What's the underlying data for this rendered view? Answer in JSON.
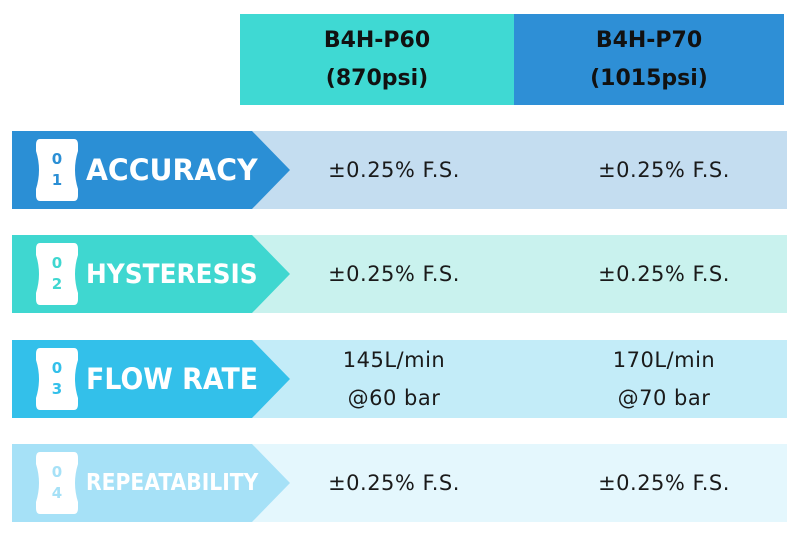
{
  "columns": [
    {
      "model": "B4H-P60",
      "pressure": "(870psi)"
    },
    {
      "model": "B4H-P70",
      "pressure": "(1015psi)"
    }
  ],
  "rows": [
    {
      "num_top": "0",
      "num_bottom": "1",
      "label": "ACCURACY",
      "value_1_line1": "±0.25% F.S.",
      "value_1_line2": "",
      "value_2_line1": "±0.25% F.S.",
      "value_2_line2": "",
      "colors": {
        "label": "#2b8fd5",
        "row": "#c4ddf0",
        "badge_text": "#2b8fd5"
      }
    },
    {
      "num_top": "0",
      "num_bottom": "2",
      "label": "HYSTERESIS",
      "value_1_line1": "±0.25% F.S.",
      "value_1_line2": "",
      "value_2_line1": "±0.25% F.S.",
      "value_2_line2": "",
      "colors": {
        "label": "#3fd7d0",
        "row": "#c9f2ee",
        "badge_text": "#3fd7d0"
      }
    },
    {
      "num_top": "0",
      "num_bottom": "3",
      "label": "FLOW RATE",
      "value_1_line1": "145L/min",
      "value_1_line2": "@60 bar",
      "value_2_line1": "170L/min",
      "value_2_line2": "@70 bar",
      "colors": {
        "label": "#33c0ea",
        "row": "#c3ecf8",
        "badge_text": "#33c0ea"
      }
    },
    {
      "num_top": "0",
      "num_bottom": "4",
      "label": "REPEATABILITY",
      "value_1_line1": "±0.25% F.S.",
      "value_1_line2": "",
      "value_2_line1": "±0.25% F.S.",
      "value_2_line2": "",
      "colors": {
        "label": "#a6e1f7",
        "row": "#e4f7fd",
        "badge_text": "#a6e1f7"
      }
    }
  ]
}
